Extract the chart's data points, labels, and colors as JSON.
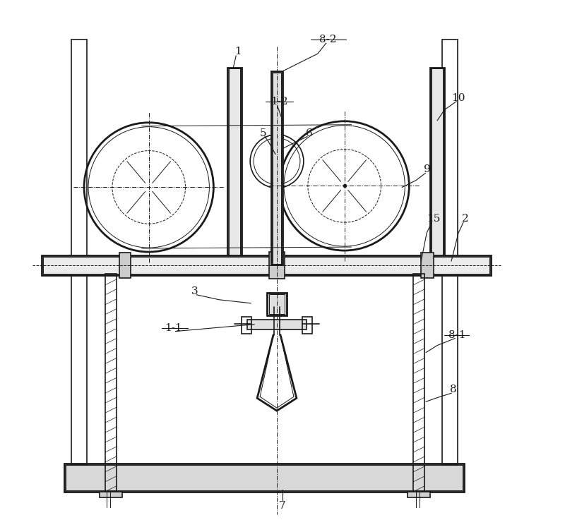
{
  "bg_color": "#ffffff",
  "line_color": "#1a1a1a",
  "fig_width": 8.0,
  "fig_height": 7.37,
  "dpi": 100
}
